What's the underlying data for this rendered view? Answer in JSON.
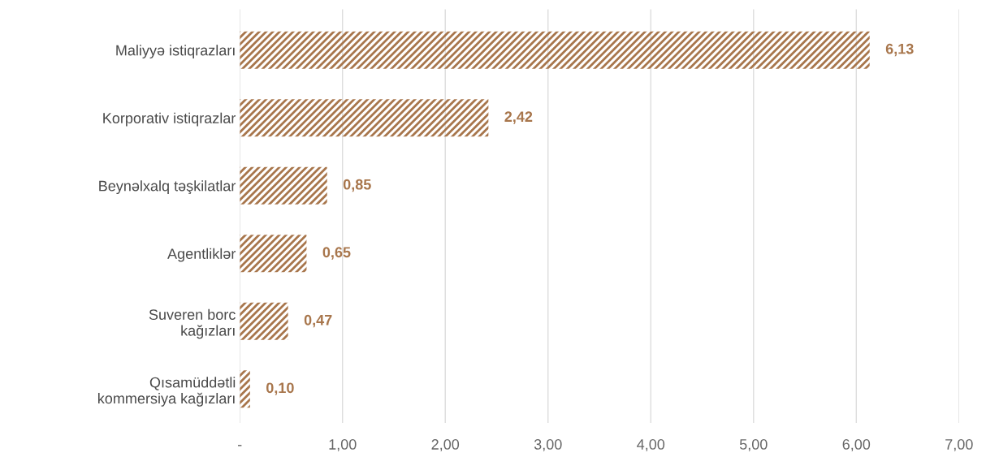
{
  "chart_data": {
    "type": "bar",
    "orientation": "horizontal",
    "categories": [
      "Maliyyə istiqrazları",
      "Korporativ istiqrazlar",
      "Beynəlxalq təşkilatlar",
      "Agentliklər",
      "Suveren borc\nkağızları",
      "Qısamüddətli\nkommersiya kağızları"
    ],
    "values": [
      6.13,
      2.42,
      0.85,
      0.65,
      0.47,
      0.1
    ],
    "value_labels": [
      "6,13",
      "2,42",
      "0,85",
      "0,65",
      "0,47",
      "0,10"
    ],
    "color": "#a8764c",
    "xlim": [
      0,
      7
    ],
    "xticks": [
      {
        "value": 0,
        "label": "-"
      },
      {
        "value": 1,
        "label": "1,00"
      },
      {
        "value": 2,
        "label": "2,00"
      },
      {
        "value": 3,
        "label": "3,00"
      },
      {
        "value": 4,
        "label": "4,00"
      },
      {
        "value": 5,
        "label": "5,00"
      },
      {
        "value": 6,
        "label": "6,00"
      },
      {
        "value": 7,
        "label": "7,00"
      }
    ],
    "grid": "x"
  }
}
